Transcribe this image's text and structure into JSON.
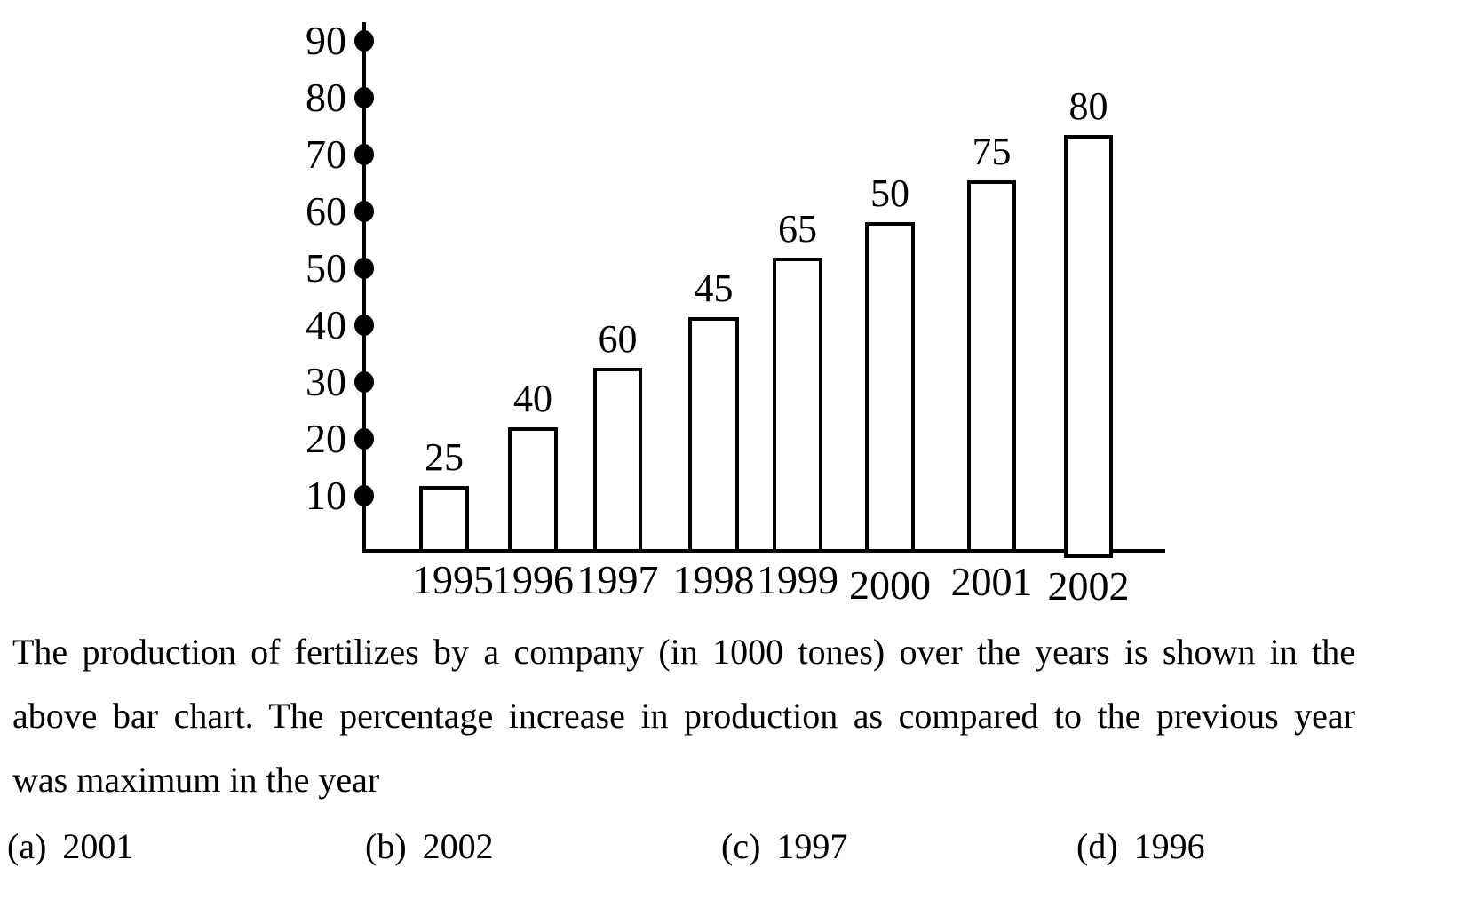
{
  "chart_data": {
    "type": "bar",
    "title": "",
    "xlabel": "",
    "ylabel": "",
    "categories": [
      "1995",
      "1996",
      "1997",
      "1998",
      "1999",
      "2000",
      "2001",
      "2002"
    ],
    "values": [
      25,
      40,
      60,
      45,
      65,
      50,
      75,
      80
    ],
    "yticks": [
      90,
      80,
      70,
      60,
      50,
      40,
      30,
      20,
      10
    ],
    "ylim": [
      0,
      95
    ],
    "grid": false,
    "legend": false,
    "bar_fill": "#ffffff",
    "bar_border": "#000000",
    "series_name": "Production of fertilizes (in 1000 tones)"
  },
  "question": {
    "lines": [
      "The production of fertilizes by a company (in 1000 tones) over the years is shown in the",
      "above bar chart. The percentage increase in production as compared to the previous year",
      "was maximum in the year"
    ]
  },
  "options": [
    {
      "key": "(a)",
      "year": "2001"
    },
    {
      "key": "(b)",
      "year": "2002"
    },
    {
      "key": "(c)",
      "year": "1997"
    },
    {
      "key": "(d)",
      "year": "1996"
    }
  ]
}
